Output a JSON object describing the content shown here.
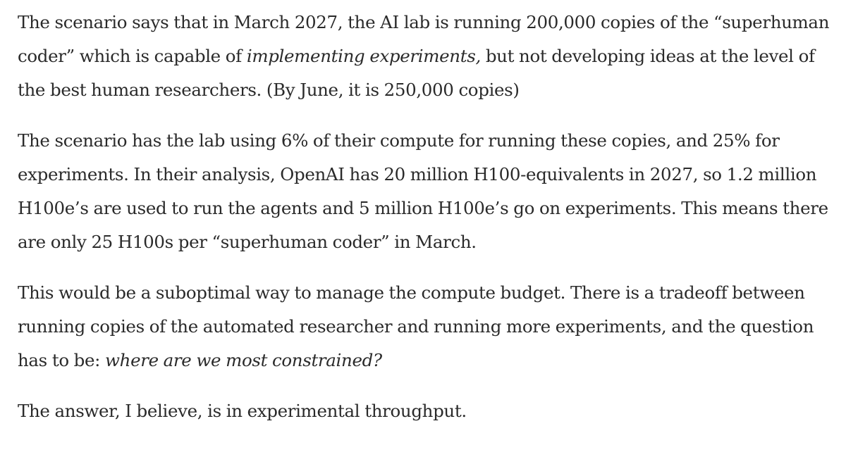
{
  "article": {
    "p1": {
      "before": "The scenario says that in March 2027, the AI lab is running 200,000 copies of the “superhuman coder” which is capable of ",
      "emphasis": "implementing experiments,",
      "after": " but not developing ideas at the level of the best human researchers. (By June, it is 250,000 copies)"
    },
    "p2": "The scenario has the lab using 6% of their compute for running these copies, and 25% for experiments. In their analysis, OpenAI has 20 million H100-equivalents in 2027, so 1.2 million H100e’s are used to run the agents and 5 million H100e’s go on experiments. This means there are only 25 H100s per “superhuman coder” in March.",
    "p3": {
      "before": "This would be a suboptimal way to manage the compute budget. There is a tradeoff between running copies of the automated researcher and running more experiments, and the question has to be: ",
      "emphasis": "where are we most constrained?"
    },
    "p4": "The answer, I believe, is in experimental throughput."
  }
}
